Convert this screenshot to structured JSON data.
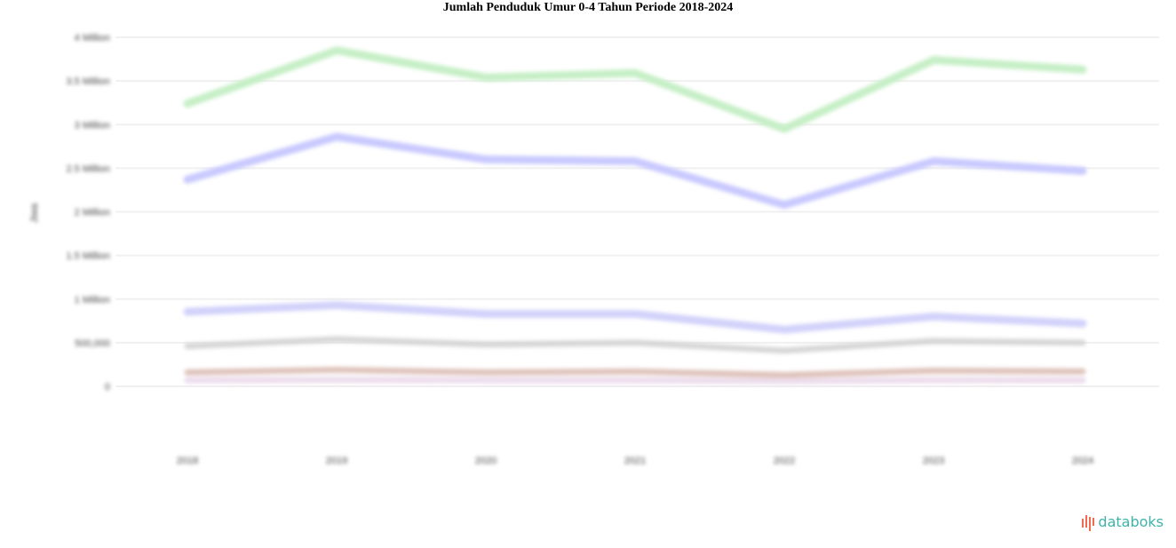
{
  "chart_data": {
    "type": "line",
    "title": "Jumlah Penduduk Umur 0-4 Tahun Periode 2018-2024",
    "ylabel": "Jiwa",
    "xlabel": "",
    "x": [
      "2018",
      "2019",
      "2020",
      "2021",
      "2022",
      "2023",
      "2024"
    ],
    "ylim": [
      0,
      4000000
    ],
    "yticks": [
      0,
      500000,
      1000000,
      1500000,
      2000000,
      2500000,
      3000000,
      3500000,
      4000000
    ],
    "ytick_labels": [
      "0",
      "500,000",
      "1 Million",
      "1.5 Million",
      "2 Million",
      "2.5 Million",
      "3 Million",
      "3.5 Million",
      "4 Million"
    ],
    "grid": true,
    "series": [
      {
        "color": "#c6efc6",
        "values": [
          3240000,
          3850000,
          3540000,
          3590000,
          2950000,
          3740000,
          3630000
        ]
      },
      {
        "color": "#c9c9ff",
        "values": [
          2370000,
          2860000,
          2600000,
          2580000,
          2080000,
          2580000,
          2470000
        ]
      },
      {
        "color": "#d2d2fb",
        "values": [
          855000,
          930000,
          830000,
          830000,
          650000,
          800000,
          720000
        ]
      },
      {
        "color": "#d6d6d6",
        "values": [
          460000,
          540000,
          480000,
          500000,
          410000,
          520000,
          500000
        ]
      },
      {
        "color": "#dfc3bb",
        "values": [
          160000,
          190000,
          160000,
          170000,
          130000,
          180000,
          170000
        ]
      },
      {
        "color": "#ecdcec",
        "values": [
          70000,
          75000,
          70000,
          70000,
          60000,
          72000,
          70000
        ]
      }
    ]
  },
  "brand": {
    "name": "databoks",
    "accent": "#3fb3a8",
    "mark_color": "#ef6a4f"
  }
}
